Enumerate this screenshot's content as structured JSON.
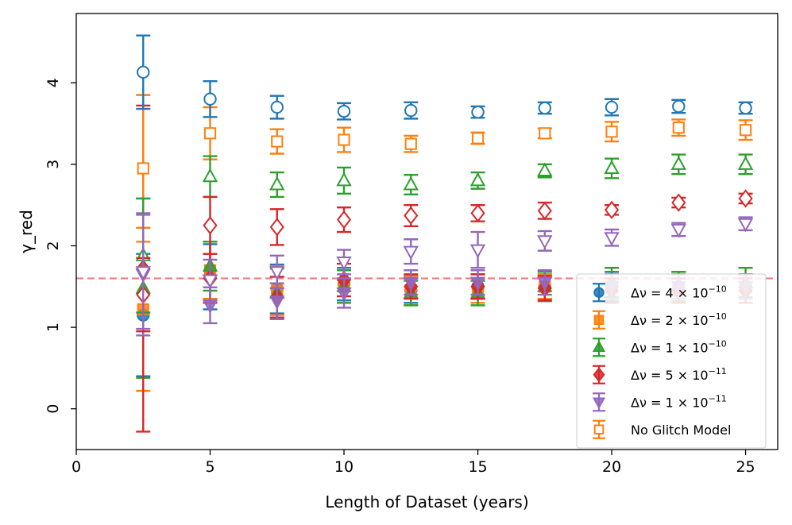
{
  "chart_data": {
    "type": "scatter",
    "xlabel": "Length of Dataset (years)",
    "ylabel": "γ_red",
    "xlim": [
      0,
      26.2
    ],
    "ylim": [
      -0.5,
      4.85
    ],
    "xticks": [
      0,
      5,
      10,
      15,
      20,
      25
    ],
    "yticks": [
      0,
      1,
      2,
      3,
      4
    ],
    "grid": false,
    "legend_position": "lower-right",
    "reference_line": {
      "y": 1.6,
      "style": "dashed",
      "color": "#f08080"
    },
    "series": [
      {
        "name": "Δν = 4×10⁻¹⁰",
        "legend": {
          "prefix": "Δν = 4 × 10",
          "exp": "−10"
        },
        "color": "#1f77b4",
        "marker": "circle",
        "filled": true,
        "x": [
          2.5,
          5,
          7.5,
          10,
          12.5,
          15,
          17.5,
          20,
          22.5,
          25
        ],
        "y": [
          1.15,
          1.62,
          1.47,
          1.53,
          1.45,
          1.5,
          1.5,
          1.5,
          1.5,
          1.5
        ],
        "yerr": [
          0.75,
          0.4,
          0.3,
          0.2,
          0.15,
          0.15,
          0.15,
          0.18,
          0.18,
          0.15
        ]
      },
      {
        "name": "Δν = 2×10⁻¹⁰",
        "legend": {
          "prefix": "Δν = 2 × 10",
          "exp": "−10"
        },
        "color": "#ff7f0e",
        "marker": "square",
        "filled": true,
        "x": [
          2.5,
          5,
          7.5,
          10,
          12.5,
          15,
          17.5,
          20,
          22.5,
          25
        ],
        "y": [
          1.22,
          1.7,
          1.45,
          1.5,
          1.45,
          1.45,
          1.5,
          1.5,
          1.45,
          1.5
        ],
        "yerr": [
          1.0,
          0.35,
          0.3,
          0.2,
          0.18,
          0.15,
          0.15,
          0.15,
          0.15,
          0.15
        ]
      },
      {
        "name": "Δν = 1×10⁻¹⁰",
        "legend": {
          "prefix": "Δν = 1 × 10",
          "exp": "−10"
        },
        "color": "#2ca02c",
        "marker": "triangle-up",
        "filled": true,
        "x": [
          2.5,
          5,
          7.5,
          10,
          12.5,
          15,
          17.5,
          20,
          22.5,
          25
        ],
        "y": [
          1.48,
          1.75,
          1.42,
          1.5,
          1.42,
          1.42,
          1.5,
          1.55,
          1.5,
          1.55
        ],
        "yerr": [
          1.1,
          0.3,
          0.3,
          0.2,
          0.15,
          0.15,
          0.18,
          0.18,
          0.18,
          0.18
        ]
      },
      {
        "name": "Δν = 5×10⁻¹¹",
        "legend": {
          "prefix": "Δν = 5 × 10",
          "exp": "−11"
        },
        "color": "#d62728",
        "marker": "diamond",
        "filled": true,
        "x": [
          2.5,
          5,
          7.5,
          10,
          12.5,
          15,
          17.5,
          20,
          22.5,
          25
        ],
        "y": [
          1.72,
          1.6,
          1.37,
          1.58,
          1.5,
          1.5,
          1.48,
          1.45,
          1.45,
          1.45
        ],
        "yerr": [
          2.0,
          0.3,
          0.25,
          0.2,
          0.15,
          0.15,
          0.15,
          0.15,
          0.15,
          0.15
        ]
      },
      {
        "name": "Δν = 1×10⁻¹¹",
        "legend": {
          "prefix": "Δν = 1 × 10",
          "exp": "−11"
        },
        "color": "#9467bd",
        "marker": "triangle-down",
        "filled": true,
        "x": [
          2.5,
          5,
          7.5,
          10,
          12.5,
          15,
          17.5,
          20,
          22.5,
          25
        ],
        "y": [
          1.65,
          1.27,
          1.32,
          1.42,
          1.55,
          1.55,
          1.55,
          1.5,
          1.5,
          1.5
        ],
        "yerr": [
          0.75,
          0.22,
          0.22,
          0.18,
          0.15,
          0.15,
          0.15,
          0.15,
          0.15,
          0.15
        ]
      },
      {
        "name": "No Glitch Model",
        "legend": {
          "prefix": "No Glitch Model",
          "exp": ""
        },
        "color": "#ff7f0e",
        "marker": "square",
        "filled": false,
        "x": [
          2.5,
          5,
          7.5,
          10,
          12.5,
          15,
          17.5,
          20,
          22.5,
          25
        ],
        "y": [
          2.95,
          3.38,
          3.28,
          3.3,
          3.25,
          3.32,
          3.38,
          3.4,
          3.45,
          3.42
        ],
        "yerr": [
          0.9,
          0.32,
          0.15,
          0.15,
          0.1,
          0.07,
          0.06,
          0.12,
          0.1,
          0.12
        ]
      },
      {
        "name": "open-blue",
        "color": "#1f77b4",
        "marker": "circle",
        "filled": false,
        "x": [
          2.5,
          5,
          7.5,
          10,
          12.5,
          15,
          17.5,
          20,
          22.5,
          25
        ],
        "y": [
          4.13,
          3.8,
          3.7,
          3.65,
          3.66,
          3.64,
          3.69,
          3.7,
          3.71,
          3.69
        ],
        "yerr": [
          0.45,
          0.22,
          0.14,
          0.1,
          0.1,
          0.07,
          0.07,
          0.1,
          0.08,
          0.07
        ]
      },
      {
        "name": "open-green",
        "color": "#2ca02c",
        "marker": "triangle-up",
        "filled": false,
        "x": [
          2.5,
          5,
          7.5,
          10,
          12.5,
          15,
          17.5,
          20,
          22.5,
          25
        ],
        "y": [
          1.88,
          2.85,
          2.75,
          2.8,
          2.75,
          2.8,
          2.92,
          2.95,
          3.0,
          3.0
        ],
        "yerr": [
          0.7,
          0.25,
          0.15,
          0.16,
          0.12,
          0.1,
          0.08,
          0.12,
          0.12,
          0.12
        ]
      },
      {
        "name": "open-red",
        "color": "#d62728",
        "marker": "diamond",
        "filled": false,
        "x": [
          2.5,
          5,
          7.5,
          10,
          12.5,
          15,
          17.5,
          20,
          22.5,
          25
        ],
        "y": [
          1.4,
          2.25,
          2.23,
          2.32,
          2.37,
          2.4,
          2.43,
          2.44,
          2.53,
          2.58
        ],
        "yerr": [
          0.45,
          0.35,
          0.22,
          0.15,
          0.13,
          0.1,
          0.1,
          0.06,
          0.06,
          0.06
        ]
      },
      {
        "name": "open-purple",
        "color": "#9467bd",
        "marker": "triangle-down",
        "filled": false,
        "x": [
          2.5,
          5,
          7.5,
          10,
          12.5,
          15,
          17.5,
          20,
          22.5,
          25
        ],
        "y": [
          1.68,
          1.58,
          1.68,
          1.8,
          1.93,
          1.95,
          2.06,
          2.1,
          2.2,
          2.27
        ],
        "yerr": [
          0.7,
          0.25,
          0.2,
          0.15,
          0.15,
          0.22,
          0.12,
          0.1,
          0.08,
          0.08
        ]
      }
    ]
  }
}
